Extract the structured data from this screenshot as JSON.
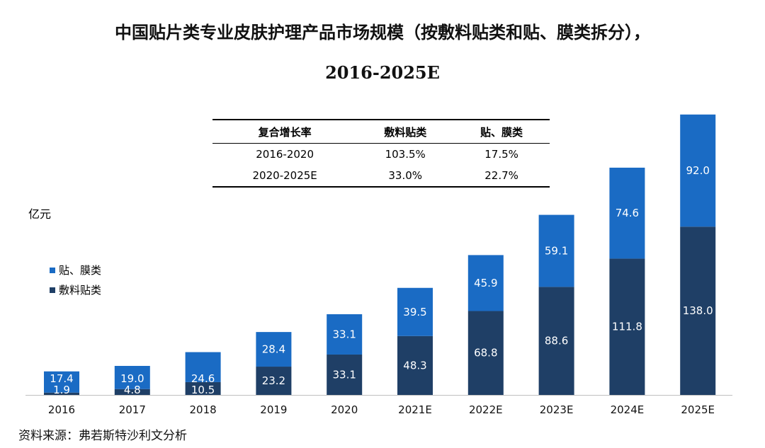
{
  "title": {
    "line1": "中国贴片类专业皮肤护理产品市场规模（按敷料贴类和贴、膜类拆分），",
    "line2": "2016-2025E"
  },
  "unit_label": "亿元",
  "source": "资料来源：弗若斯特沙利文分析",
  "cagr_table": {
    "headers": [
      "复合增长率",
      "敷料贴类",
      "贴、膜类"
    ],
    "rows": [
      [
        "2016-2020",
        "103.5%",
        "17.5%"
      ],
      [
        "2020-2025E",
        "33.0%",
        "22.7%"
      ]
    ]
  },
  "chart_data": {
    "type": "bar",
    "stacked": true,
    "categories": [
      "2016",
      "2017",
      "2018",
      "2019",
      "2020",
      "2021E",
      "2022E",
      "2023E",
      "2024E",
      "2025E"
    ],
    "series": [
      {
        "name": "敷料贴类",
        "color": "#1f3f66",
        "values": [
          1.9,
          4.8,
          10.5,
          23.2,
          33.1,
          48.3,
          68.8,
          88.6,
          111.8,
          138.0
        ]
      },
      {
        "name": "贴、膜类",
        "color": "#1a6bc4",
        "values": [
          17.4,
          19.0,
          24.6,
          28.4,
          33.1,
          39.5,
          45.9,
          59.1,
          74.6,
          92.0
        ]
      }
    ],
    "legend": [
      "贴、膜类",
      "敷料贴类"
    ],
    "legend_position": "left",
    "ylabel": "亿元",
    "grid": false
  }
}
